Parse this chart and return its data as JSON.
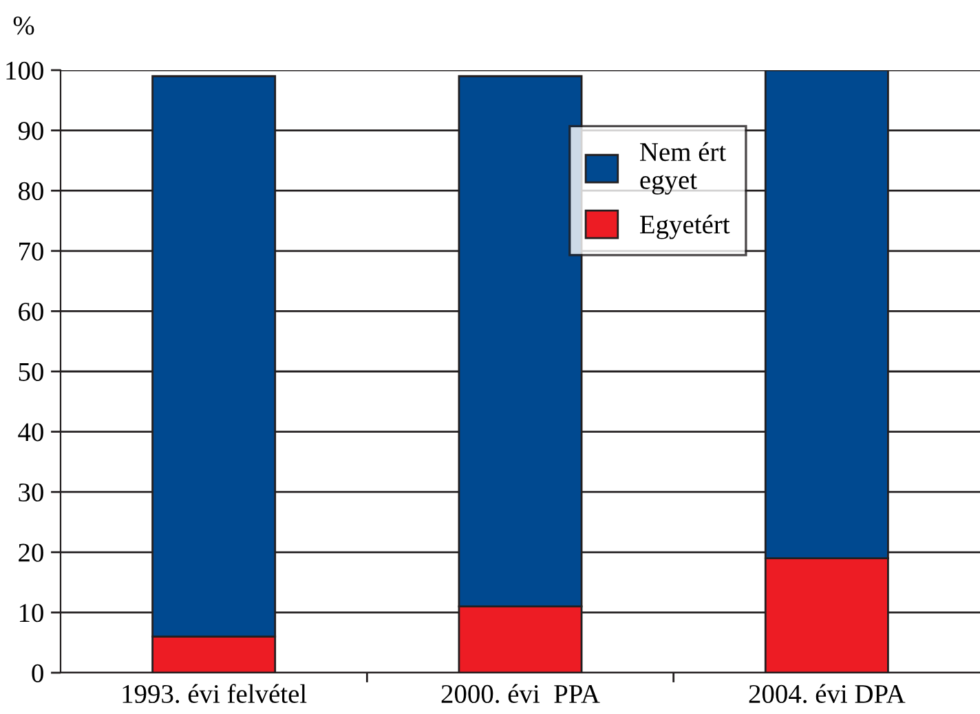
{
  "chart_data": {
    "type": "bar",
    "stacked": true,
    "ylabel": "%",
    "categories": [
      "1993. évi felvétel",
      "2000. évi  PPA",
      "2004. évi DPA"
    ],
    "series": [
      {
        "name": "Egyetért",
        "color": "#ed1c24",
        "values": [
          6,
          11,
          19
        ]
      },
      {
        "name": "Nem ért\negyet",
        "color": "#004990",
        "values": [
          93,
          88,
          81
        ]
      }
    ],
    "ylim": [
      0,
      100
    ],
    "yticks": [
      0,
      10,
      20,
      30,
      40,
      50,
      60,
      70,
      80,
      90,
      100
    ],
    "grid": "y",
    "legend": "center right"
  }
}
